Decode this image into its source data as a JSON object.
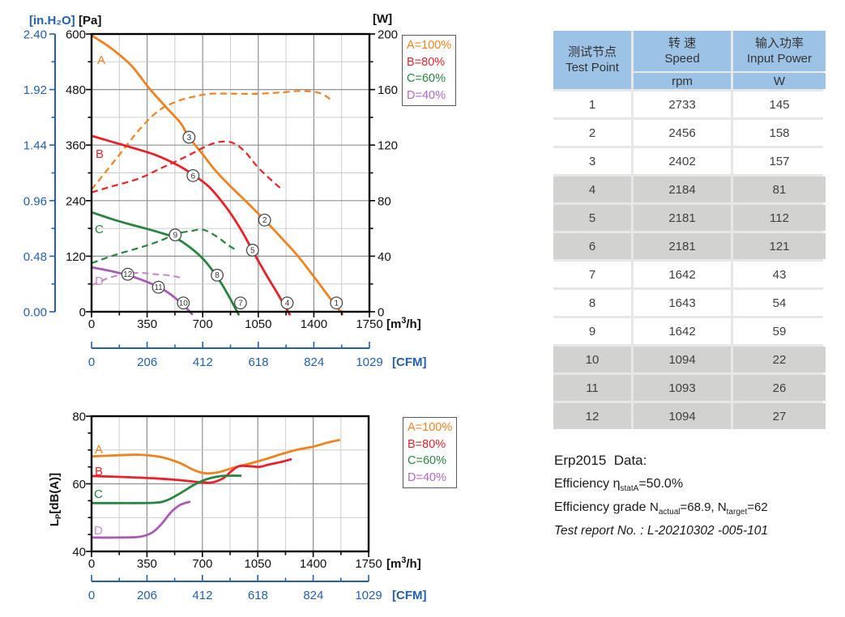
{
  "legend": {
    "items": [
      {
        "key": "A",
        "label": "A=100%",
        "color": "#f0831f"
      },
      {
        "key": "B",
        "label": "B=80%",
        "color": "#e8222a"
      },
      {
        "key": "C",
        "label": "C=60%",
        "color": "#27853f"
      },
      {
        "key": "D",
        "label": "D=40%",
        "color": "#b168c9"
      }
    ]
  },
  "chart_data": [
    {
      "id": "pressure_power",
      "type": "line",
      "title": "Static pressure and input power vs airflow",
      "x_axis": {
        "label": "[m³/h]",
        "ticks": [
          0,
          350,
          700,
          1050,
          1400,
          1750
        ],
        "min": 0,
        "max": 1750,
        "minor_step": 175
      },
      "x_axis_cfm": {
        "label": "[CFM]",
        "ticks": [
          0,
          206,
          412,
          618,
          824,
          1029
        ],
        "min": 0,
        "max": 1029
      },
      "y_axis_pa": {
        "label": "[Pa]",
        "ticks": [
          600,
          480,
          360,
          240,
          120,
          0
        ],
        "min": 0,
        "max": 600,
        "minor_step": 60
      },
      "y_axis_inh2o": {
        "label": "[in.H₂O]",
        "ticks": [
          "2.40",
          "1.92",
          "1.44",
          "0.96",
          "0.48",
          "0.00"
        ],
        "min": 0,
        "max": 2.4
      },
      "y_axis_w": {
        "label": "[W]",
        "ticks": [
          200,
          160,
          120,
          80,
          40,
          0
        ],
        "min": 0,
        "max": 200,
        "minor_step": 20
      },
      "series": [
        {
          "name": "A-pressure",
          "color": "#f0831f",
          "dash": false,
          "axis": "pa",
          "points": [
            [
              0,
              597
            ],
            [
              120,
              570
            ],
            [
              250,
              532
            ],
            [
              365,
              482
            ],
            [
              480,
              438
            ],
            [
              560,
              408
            ],
            [
              614,
              377
            ],
            [
              700,
              340
            ],
            [
              780,
              305
            ],
            [
              872,
              272
            ],
            [
              980,
              236
            ],
            [
              1090,
              198
            ],
            [
              1200,
              158
            ],
            [
              1300,
              120
            ],
            [
              1400,
              76
            ],
            [
              1500,
              30
            ],
            [
              1568,
              0
            ]
          ]
        },
        {
          "name": "A-power",
          "color": "#f0831f",
          "dash": true,
          "axis": "w",
          "points": [
            [
              0,
              88
            ],
            [
              175,
              113
            ],
            [
              300,
              131
            ],
            [
              425,
              145
            ],
            [
              550,
              152
            ],
            [
              650,
              155
            ],
            [
              750,
              157
            ],
            [
              900,
              157
            ],
            [
              1050,
              157
            ],
            [
              1200,
              158
            ],
            [
              1320,
              159
            ],
            [
              1420,
              158
            ],
            [
              1480,
              155
            ],
            [
              1520,
              151
            ]
          ]
        },
        {
          "name": "B-pressure",
          "color": "#e8222a",
          "dash": false,
          "axis": "pa",
          "points": [
            [
              0,
              380
            ],
            [
              130,
              367
            ],
            [
              260,
              354
            ],
            [
              400,
              339
            ],
            [
              540,
              317
            ],
            [
              640,
              296
            ],
            [
              745,
              268
            ],
            [
              860,
              220
            ],
            [
              950,
              172
            ],
            [
              1020,
              128
            ],
            [
              1100,
              80
            ],
            [
              1170,
              40
            ],
            [
              1238,
              0
            ]
          ]
        },
        {
          "name": "B-power",
          "color": "#e8222a",
          "dash": true,
          "axis": "w",
          "points": [
            [
              0,
              86
            ],
            [
              150,
              91
            ],
            [
              300,
              96
            ],
            [
              450,
              104
            ],
            [
              600,
              112
            ],
            [
              700,
              118
            ],
            [
              790,
              122
            ],
            [
              880,
              122
            ],
            [
              960,
              116
            ],
            [
              1040,
              105
            ],
            [
              1120,
              96
            ],
            [
              1200,
              88
            ]
          ]
        },
        {
          "name": "C-pressure",
          "color": "#27853f",
          "dash": false,
          "axis": "pa",
          "points": [
            [
              0,
              215
            ],
            [
              130,
              200
            ],
            [
              250,
              188
            ],
            [
              350,
              179
            ],
            [
              450,
              169
            ],
            [
              527,
              160
            ],
            [
              620,
              139
            ],
            [
              700,
              115
            ],
            [
              760,
              90
            ],
            [
              820,
              60
            ],
            [
              870,
              30
            ],
            [
              917,
              0
            ]
          ]
        },
        {
          "name": "C-power",
          "color": "#27853f",
          "dash": true,
          "axis": "w",
          "points": [
            [
              0,
              35
            ],
            [
              150,
              41
            ],
            [
              300,
              46
            ],
            [
              430,
              51
            ],
            [
              530,
              56
            ],
            [
              620,
              58
            ],
            [
              705,
              59
            ],
            [
              790,
              54
            ],
            [
              860,
              48
            ],
            [
              917,
              44
            ]
          ]
        },
        {
          "name": "D-pressure",
          "color": "#a75cb4",
          "dash": false,
          "axis": "pa",
          "points": [
            [
              0,
              96
            ],
            [
              120,
              88
            ],
            [
              228,
              79
            ],
            [
              330,
              67
            ],
            [
              426,
              53
            ],
            [
              500,
              37
            ],
            [
              560,
              20
            ],
            [
              600,
              7
            ],
            [
              619,
              0
            ]
          ]
        },
        {
          "name": "D-power",
          "color": "#c78ccc",
          "dash": true,
          "axis": "w",
          "points": [
            [
              0,
              19
            ],
            [
              100,
              24
            ],
            [
              200,
              27
            ],
            [
              300,
              28
            ],
            [
              400,
              27
            ],
            [
              500,
              26
            ],
            [
              578,
              24
            ]
          ]
        }
      ],
      "curve_labels": [
        {
          "text": "A",
          "color": "#f0831f"
        },
        {
          "text": "B",
          "color": "#e8222a"
        },
        {
          "text": "C",
          "color": "#27853f"
        },
        {
          "text": "D",
          "color": "#c78ccc"
        }
      ],
      "markers": [
        {
          "n": "1",
          "q": 1542,
          "v": 19
        },
        {
          "n": "2",
          "q": 1090,
          "v": 198
        },
        {
          "n": "3",
          "q": 614,
          "v": 377
        },
        {
          "n": "4",
          "q": 1232,
          "v": 19
        },
        {
          "n": "5",
          "q": 1014,
          "v": 133
        },
        {
          "n": "6",
          "q": 639,
          "v": 294
        },
        {
          "n": "7",
          "q": 938,
          "v": 19
        },
        {
          "n": "8",
          "q": 791,
          "v": 79
        },
        {
          "n": "9",
          "q": 527,
          "v": 166
        },
        {
          "n": "10",
          "q": 578,
          "v": 19
        },
        {
          "n": "11",
          "q": 421,
          "v": 53
        },
        {
          "n": "12",
          "q": 228,
          "v": 81
        }
      ]
    },
    {
      "id": "noise",
      "type": "line",
      "title": "Sound pressure level vs airflow",
      "x_axis": {
        "label": "[m³/h]",
        "ticks": [
          0,
          350,
          700,
          1050,
          1400,
          1750
        ],
        "min": 0,
        "max": 1750,
        "minor_step": 175
      },
      "x_axis_cfm": {
        "label": "[CFM]",
        "ticks": [
          0,
          206,
          412,
          618,
          824,
          1029
        ],
        "min": 0,
        "max": 1029
      },
      "y_axis": {
        "label_main": "L",
        "label_sub": "P",
        "label_rest": "[dB(A)]",
        "ticks": [
          80,
          60,
          40
        ],
        "min": 40,
        "max": 80,
        "minor_step": 5
      },
      "series": [
        {
          "name": "A-noise",
          "color": "#f0831f",
          "dash": false,
          "points": [
            [
              0,
              68.1
            ],
            [
              150,
              68.4
            ],
            [
              300,
              68.6
            ],
            [
              430,
              68.0
            ],
            [
              550,
              66.3
            ],
            [
              650,
              64.0
            ],
            [
              720,
              63.1
            ],
            [
              800,
              63.4
            ],
            [
              900,
              64.8
            ],
            [
              1000,
              66.0
            ],
            [
              1100,
              67.3
            ],
            [
              1200,
              68.8
            ],
            [
              1300,
              70.1
            ],
            [
              1400,
              71.0
            ],
            [
              1500,
              72.3
            ],
            [
              1570,
              73.0
            ]
          ]
        },
        {
          "name": "B-noise",
          "color": "#e8222a",
          "dash": false,
          "points": [
            [
              0,
              62.3
            ],
            [
              200,
              62.0
            ],
            [
              400,
              61.6
            ],
            [
              550,
              61.1
            ],
            [
              680,
              60.5
            ],
            [
              760,
              60.4
            ],
            [
              830,
              61.6
            ],
            [
              880,
              63.6
            ],
            [
              930,
              65.2
            ],
            [
              1000,
              65.2
            ],
            [
              1060,
              65.0
            ],
            [
              1120,
              65.7
            ],
            [
              1200,
              66.5
            ],
            [
              1264,
              67.3
            ]
          ]
        },
        {
          "name": "C-noise",
          "color": "#27853f",
          "dash": false,
          "points": [
            [
              0,
              54.3
            ],
            [
              200,
              54.3
            ],
            [
              400,
              54.4
            ],
            [
              480,
              55.2
            ],
            [
              560,
              57.2
            ],
            [
              640,
              59.5
            ],
            [
              700,
              60.9
            ],
            [
              760,
              61.8
            ],
            [
              820,
              62.3
            ],
            [
              880,
              62.4
            ],
            [
              947,
              62.4
            ]
          ]
        },
        {
          "name": "D-noise",
          "color": "#a75cb4",
          "dash": false,
          "points": [
            [
              0,
              44.1
            ],
            [
              150,
              44.1
            ],
            [
              300,
              44.3
            ],
            [
              380,
              45.5
            ],
            [
              440,
              48.0
            ],
            [
              500,
              51.5
            ],
            [
              550,
              53.5
            ],
            [
              590,
              54.3
            ],
            [
              624,
              54.7
            ]
          ]
        }
      ],
      "curve_labels": [
        {
          "text": "A",
          "color": "#f0831f"
        },
        {
          "text": "B",
          "color": "#e8222a"
        },
        {
          "text": "C",
          "color": "#27853f"
        },
        {
          "text": "D",
          "color": "#c78ccc"
        }
      ]
    }
  ],
  "table": {
    "header": {
      "col1_cn": "测试节点",
      "col1_en": "Test Point",
      "col2_cn": "转 速",
      "col2_en": "Speed",
      "col2_unit": "rpm",
      "col3_cn": "输入功率",
      "col3_en": "Input Power",
      "col3_unit": "W"
    },
    "rows": [
      {
        "point": "1",
        "speed": "2733",
        "power": "145",
        "shade": false
      },
      {
        "point": "2",
        "speed": "2456",
        "power": "158",
        "shade": false
      },
      {
        "point": "3",
        "speed": "2402",
        "power": "157",
        "shade": false
      },
      {
        "point": "4",
        "speed": "2184",
        "power": "81",
        "shade": true
      },
      {
        "point": "5",
        "speed": "2181",
        "power": "112",
        "shade": true
      },
      {
        "point": "6",
        "speed": "2181",
        "power": "121",
        "shade": true
      },
      {
        "point": "7",
        "speed": "1642",
        "power": "43",
        "shade": false
      },
      {
        "point": "8",
        "speed": "1643",
        "power": "54",
        "shade": false
      },
      {
        "point": "9",
        "speed": "1642",
        "power": "59",
        "shade": false
      },
      {
        "point": "10",
        "speed": "1094",
        "power": "22",
        "shade": true
      },
      {
        "point": "11",
        "speed": "1093",
        "power": "26",
        "shade": true
      },
      {
        "point": "12",
        "speed": "1094",
        "power": "27",
        "shade": true
      }
    ]
  },
  "erp": {
    "line1": "Erp2015  Data:",
    "line2_pre": "Efficiency η",
    "line2_sub": "statA",
    "line2_post": "=50.0%",
    "line3_pre": "Efficiency grade ",
    "line3_n1": "N",
    "line3_sub1": "actual",
    "line3_mid": "=68.9, N",
    "line3_sub2": "target",
    "line3_post": "=62",
    "line4": "Test report No. : L-20210302 -005-101"
  }
}
